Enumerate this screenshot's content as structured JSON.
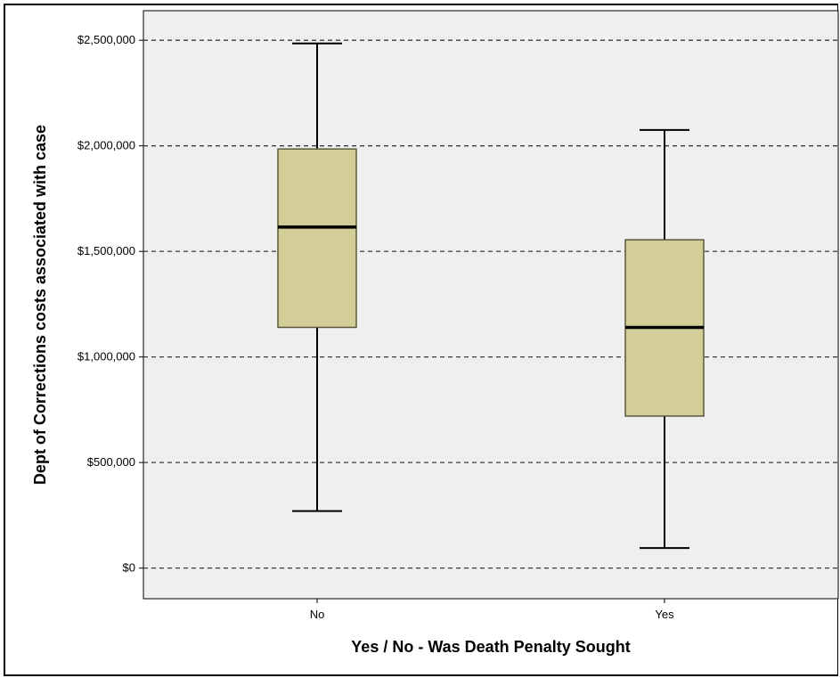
{
  "chart_data": {
    "type": "boxplot",
    "title": "",
    "xlabel": "Yes / No - Was Death Penalty Sought",
    "ylabel": "Dept of Corrections costs associated with case",
    "categories": [
      "No",
      "Yes"
    ],
    "boxes": [
      {
        "category": "No",
        "min": 270000,
        "q1": 1140000,
        "median": 1615000,
        "q3": 1985000,
        "max": 2485000
      },
      {
        "category": "Yes",
        "min": 95000,
        "q1": 720000,
        "median": 1140000,
        "q3": 1555000,
        "max": 2075000
      }
    ],
    "y_ticks": [
      0,
      500000,
      1000000,
      1500000,
      2000000,
      2500000
    ],
    "y_tick_labels": [
      "$0",
      "$500,000",
      "$1,000,000",
      "$1,500,000",
      "$2,000,000",
      "$2,500,000"
    ],
    "ylim": [
      -145000,
      2640000
    ],
    "grid": "horizontal dashed at major ticks",
    "colors": {
      "plot_background": "#efefef",
      "box_fill": "#d3cd98",
      "box_stroke": "#5a5a3c",
      "median": "#000000",
      "whisker": "#000000",
      "gridline": "#3c3c3c"
    }
  }
}
